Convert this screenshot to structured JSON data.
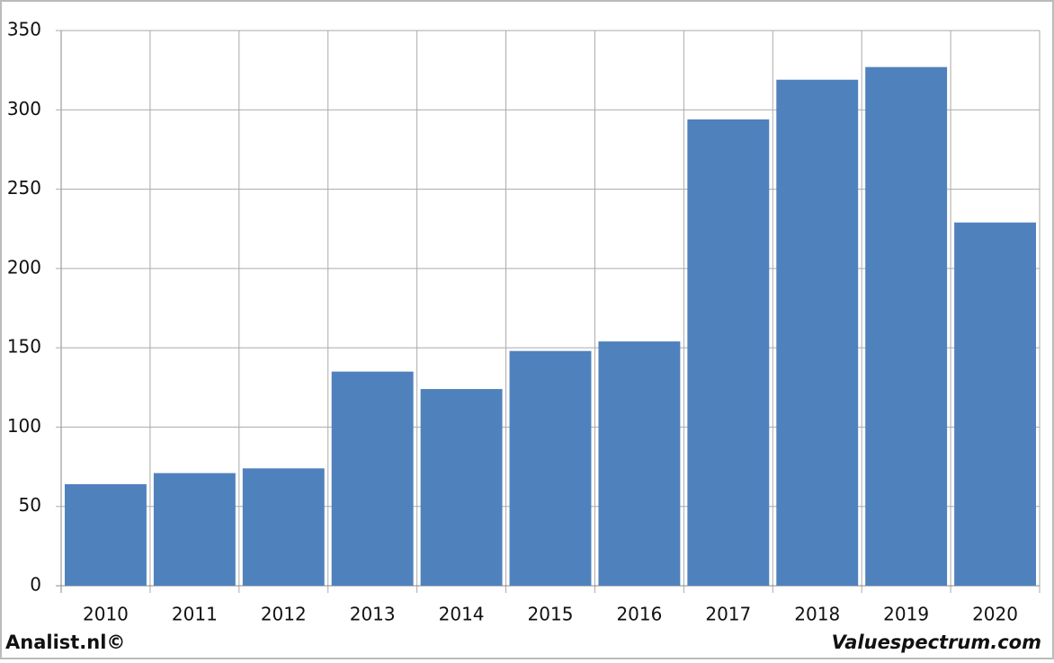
{
  "chart_data": {
    "type": "bar",
    "categories": [
      "2010",
      "2011",
      "2012",
      "2013",
      "2014",
      "2015",
      "2016",
      "2017",
      "2018",
      "2019",
      "2020"
    ],
    "values": [
      64,
      71,
      74,
      135,
      124,
      148,
      154,
      294,
      319,
      327,
      229
    ],
    "color": "#4f81bd",
    "ylim": [
      0,
      350
    ],
    "yticks": [
      0,
      50,
      100,
      150,
      200,
      250,
      300,
      350
    ],
    "grid": true,
    "footer_left": "Analist.nl©",
    "footer_right": "Valuespectrum.com"
  }
}
